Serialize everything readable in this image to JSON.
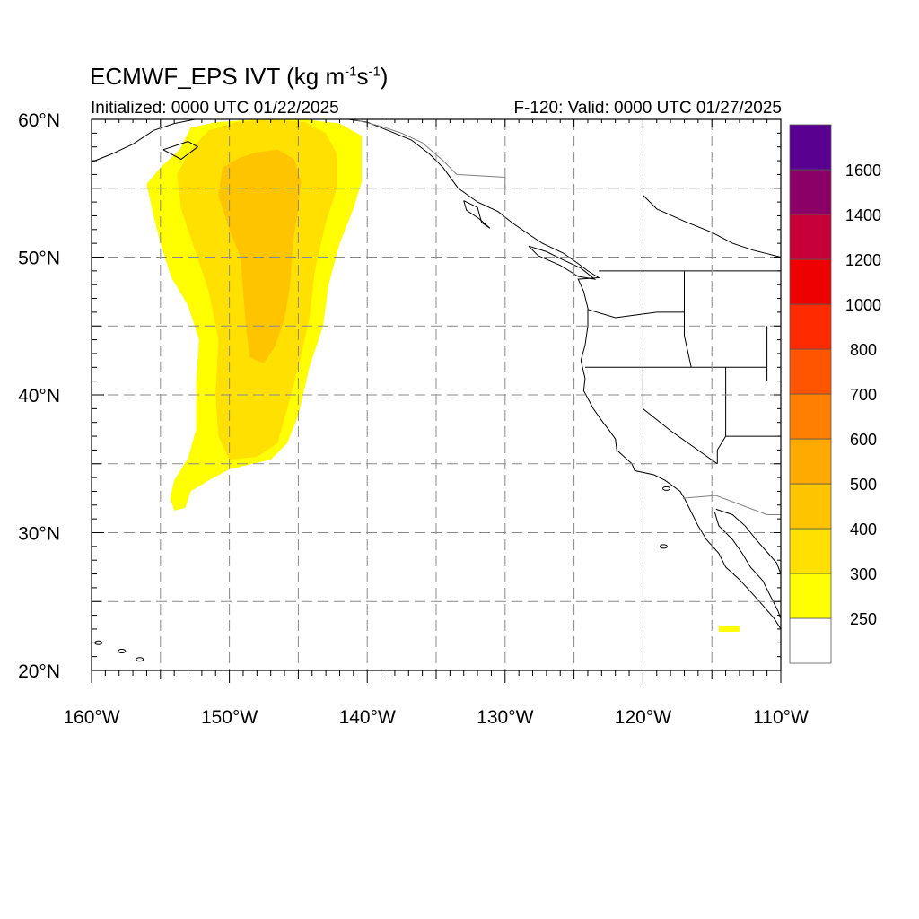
{
  "title": {
    "main": "ECMWF_EPS IVT (kg m",
    "unit_exp1": "-1",
    "mid": "s",
    "unit_exp2": "-1",
    "end": ")"
  },
  "subtitle_left": "Initialized: 0000 UTC 01/22/2025",
  "subtitle_right": "F-120: Valid: 0000 UTC 01/27/2025",
  "map": {
    "lon_range": [
      -160,
      -110
    ],
    "lat_range": [
      20,
      60
    ],
    "x_ticks": [
      {
        "lon": -160,
        "label": "160°W"
      },
      {
        "lon": -150,
        "label": "150°W"
      },
      {
        "lon": -140,
        "label": "140°W"
      },
      {
        "lon": -130,
        "label": "130°W"
      },
      {
        "lon": -120,
        "label": "120°W"
      },
      {
        "lon": -110,
        "label": "110°W"
      }
    ],
    "y_ticks": [
      {
        "lat": 60,
        "label": "60°N"
      },
      {
        "lat": 50,
        "label": "50°N"
      },
      {
        "lat": 40,
        "label": "40°N"
      },
      {
        "lat": 30,
        "label": "30°N"
      },
      {
        "lat": 20,
        "label": "20°N"
      }
    ],
    "grid_lons": [
      -155,
      -150,
      -145,
      -140,
      -135,
      -130,
      -125,
      -120,
      -115
    ],
    "grid_lats": [
      55,
      50,
      45,
      40,
      35,
      30,
      25
    ],
    "ivt_field": [
      {
        "level": 250,
        "color": "#ffff00",
        "outline": [
          [
            -152.8,
            59.4
          ],
          [
            -151,
            59.8
          ],
          [
            -148,
            60
          ],
          [
            -144.5,
            60
          ],
          [
            -142,
            59.7
          ],
          [
            -140.4,
            58.8
          ],
          [
            -140.4,
            55.5
          ],
          [
            -141,
            53.5
          ],
          [
            -142,
            51
          ],
          [
            -142.8,
            48
          ],
          [
            -143.2,
            45
          ],
          [
            -144.2,
            42
          ],
          [
            -145,
            38.5
          ],
          [
            -145.8,
            36.5
          ],
          [
            -147,
            35.3
          ],
          [
            -150,
            34.6
          ],
          [
            -151.5,
            33.8
          ],
          [
            -152.8,
            33
          ],
          [
            -153.2,
            31.8
          ],
          [
            -154,
            31.6
          ],
          [
            -154.3,
            32.5
          ],
          [
            -154,
            33.8
          ],
          [
            -153,
            35.4
          ],
          [
            -152.4,
            37.5
          ],
          [
            -152.4,
            41
          ],
          [
            -152.2,
            44
          ],
          [
            -153,
            46.5
          ],
          [
            -154.2,
            48.5
          ],
          [
            -155,
            51
          ],
          [
            -155.5,
            53
          ],
          [
            -156,
            55.3
          ],
          [
            -155,
            56.5
          ],
          [
            -153.6,
            57.8
          ]
        ]
      },
      {
        "level": 300,
        "color": "#ffe000",
        "outline": [
          [
            -151.5,
            59.2
          ],
          [
            -149.5,
            59.8
          ],
          [
            -147,
            60
          ],
          [
            -144.5,
            59.8
          ],
          [
            -143,
            59
          ],
          [
            -142.2,
            57.5
          ],
          [
            -142.2,
            55
          ],
          [
            -143,
            52.5
          ],
          [
            -143.8,
            49
          ],
          [
            -144.2,
            45.5
          ],
          [
            -145,
            42
          ],
          [
            -145.8,
            39
          ],
          [
            -146.5,
            36.5
          ],
          [
            -148,
            35.5
          ],
          [
            -150,
            35.3
          ],
          [
            -150.8,
            37
          ],
          [
            -151,
            40
          ],
          [
            -150.8,
            44
          ],
          [
            -151.5,
            47.5
          ],
          [
            -152.5,
            50.5
          ],
          [
            -153.5,
            53.5
          ],
          [
            -153.8,
            56
          ],
          [
            -152.8,
            57.8
          ]
        ]
      },
      {
        "level": 400,
        "color": "#ffc400",
        "outline": [
          [
            -148,
            57.6
          ],
          [
            -146.5,
            57.8
          ],
          [
            -145.3,
            57.1
          ],
          [
            -144.8,
            55.5
          ],
          [
            -145,
            53.5
          ],
          [
            -145.4,
            51
          ],
          [
            -145.6,
            48
          ],
          [
            -146,
            45.5
          ],
          [
            -146.7,
            43.5
          ],
          [
            -147.5,
            42.3
          ],
          [
            -148.5,
            42.7
          ],
          [
            -148.8,
            45
          ],
          [
            -149,
            47.5
          ],
          [
            -149.2,
            50
          ],
          [
            -150,
            52
          ],
          [
            -150.8,
            54.5
          ],
          [
            -150.5,
            56.5
          ],
          [
            -149.3,
            57.2
          ]
        ]
      }
    ],
    "small_patch": {
      "level": 250,
      "color": "#ffff00",
      "lon": [
        -114.5,
        -113
      ],
      "lat": [
        22.8,
        23.2
      ]
    },
    "land_color": "#ffffff",
    "coast_color": "#000000",
    "border_color": "#808080"
  },
  "colorbar": {
    "colors": [
      "#ffffff",
      "#ffff00",
      "#ffe000",
      "#ffc400",
      "#ffaa00",
      "#ff8000",
      "#ff5500",
      "#ff2a00",
      "#ee0000",
      "#c8003a",
      "#8a0066",
      "#5a0090"
    ],
    "labels": [
      "250",
      "300",
      "400",
      "500",
      "600",
      "700",
      "800",
      "1000",
      "1200",
      "1400",
      "1600"
    ]
  }
}
